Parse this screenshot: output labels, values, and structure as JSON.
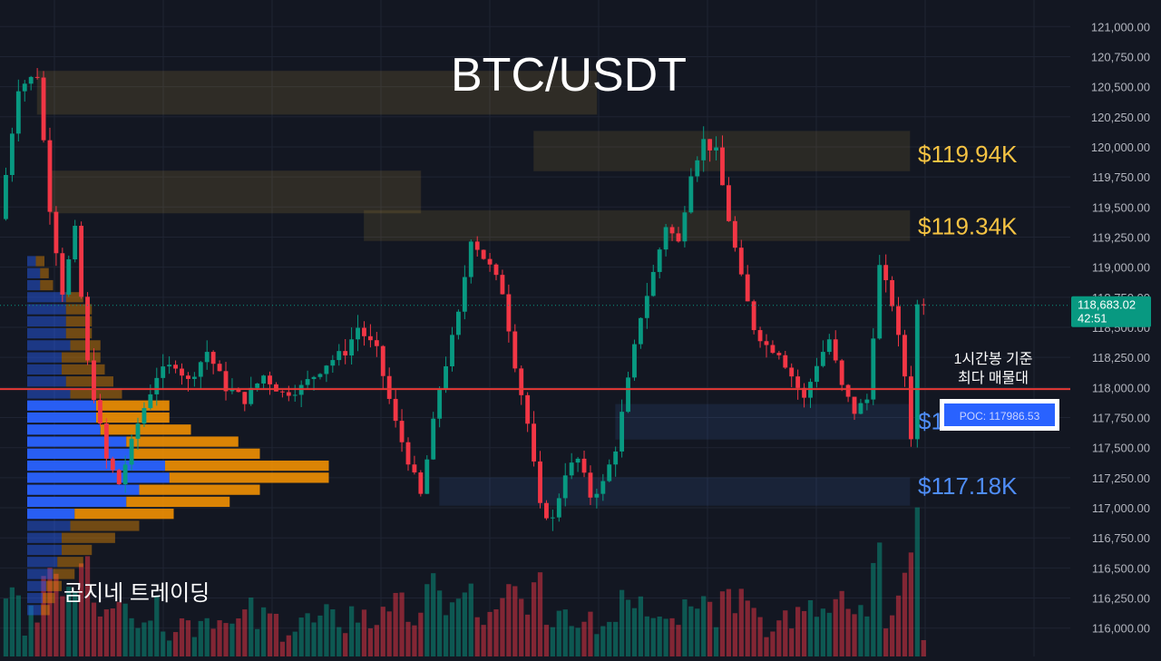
{
  "chart_data": {
    "type": "candlestick",
    "title": "BTC/USDT",
    "watermark": "곰지네 트레이딩",
    "ylim": [
      115900,
      121100
    ],
    "y_ticks": [
      {
        "value": 121000,
        "label": "121,000.00"
      },
      {
        "value": 120750,
        "label": "120,750.00"
      },
      {
        "value": 120500,
        "label": "120,500.00"
      },
      {
        "value": 120250,
        "label": "120,250.00"
      },
      {
        "value": 120000,
        "label": "120,000.00"
      },
      {
        "value": 119750,
        "label": "119,750.00"
      },
      {
        "value": 119500,
        "label": "119,500.00"
      },
      {
        "value": 119250,
        "label": "119,250.00"
      },
      {
        "value": 119000,
        "label": "119,000.00"
      },
      {
        "value": 118750,
        "label": "118,750.00"
      },
      {
        "value": 118500,
        "label": "118,500.00"
      },
      {
        "value": 118250,
        "label": "118,250.00"
      },
      {
        "value": 118000,
        "label": "118,000.00"
      },
      {
        "value": 117750,
        "label": "117,750.00"
      },
      {
        "value": 117500,
        "label": "117,500.00"
      },
      {
        "value": 117250,
        "label": "117,250.00"
      },
      {
        "value": 117000,
        "label": "117,000.00"
      },
      {
        "value": 116750,
        "label": "116,750.00"
      },
      {
        "value": 116500,
        "label": "116,500.00"
      },
      {
        "value": 116250,
        "label": "116,250.00"
      },
      {
        "value": 116000,
        "label": "116,000.00"
      }
    ],
    "current_price": {
      "value": 118683.02,
      "label": "118,683.02",
      "countdown": "42:51",
      "color": "#089981"
    },
    "poc": {
      "value": 117986.53,
      "label": "POC: 117986.53",
      "note_line1": "1시간봉 기준",
      "note_line2": "최다 매물대",
      "color": "#e53935"
    },
    "levels": [
      {
        "label": "$119.94K",
        "price": 119940,
        "zone": [
          119800,
          120130
        ],
        "start_index": 84,
        "color": "#f5c343"
      },
      {
        "label": "$119.34K",
        "price": 119340,
        "zone": [
          119220,
          119470
        ],
        "start_index": 57,
        "color": "#f5c343"
      },
      {
        "label": "$117.72K",
        "price": 117720,
        "zone": [
          117570,
          117860
        ],
        "start_index": 97,
        "color": "#4f8df7"
      },
      {
        "label": "$117.18K",
        "price": 117180,
        "zone": [
          117020,
          117250
        ],
        "start_index": 69,
        "color": "#4f8df7"
      }
    ],
    "resistance_zones_top_left": [
      {
        "zone": [
          120270,
          120630
        ],
        "start_index": 5,
        "end_index": 94
      },
      {
        "zone": [
          119450,
          119800
        ],
        "start_index": 7,
        "end_index": 66
      }
    ],
    "candles": [],
    "volume_profile": {
      "price_step": 100,
      "price_start": 116100,
      "rows": [
        {
          "buy": 16,
          "sell": 10
        },
        {
          "buy": 18,
          "sell": 14
        },
        {
          "buy": 22,
          "sell": 18
        },
        {
          "buy": 30,
          "sell": 25
        },
        {
          "buy": 35,
          "sell": 30
        },
        {
          "buy": 40,
          "sell": 35
        },
        {
          "buy": 40,
          "sell": 62
        },
        {
          "buy": 50,
          "sell": 80
        },
        {
          "buy": 55,
          "sell": 115
        },
        {
          "buy": 115,
          "sell": 120
        },
        {
          "buy": 130,
          "sell": 140
        },
        {
          "buy": 165,
          "sell": 185
        },
        {
          "buy": 160,
          "sell": 190
        },
        {
          "buy": 120,
          "sell": 150
        },
        {
          "buy": 115,
          "sell": 130
        },
        {
          "buy": 85,
          "sell": 105
        },
        {
          "buy": 80,
          "sell": 85
        },
        {
          "buy": 80,
          "sell": 85
        },
        {
          "buy": 50,
          "sell": 60
        },
        {
          "buy": 45,
          "sell": 55
        },
        {
          "buy": 40,
          "sell": 50
        },
        {
          "buy": 40,
          "sell": 45
        },
        {
          "buy": 50,
          "sell": 35
        },
        {
          "buy": 45,
          "sell": 30
        },
        {
          "buy": 45,
          "sell": 30
        },
        {
          "buy": 45,
          "sell": 30
        },
        {
          "buy": 45,
          "sell": 20
        },
        {
          "buy": 15,
          "sell": 15
        },
        {
          "buy": 15,
          "sell": 10
        },
        {
          "buy": 10,
          "sell": 10
        }
      ]
    }
  },
  "colors": {
    "up": "#089981",
    "down": "#f23645",
    "buy": "#2962ff",
    "sell": "#ff9800",
    "grid": "#1f2433",
    "axis_text": "#b2b5be"
  }
}
